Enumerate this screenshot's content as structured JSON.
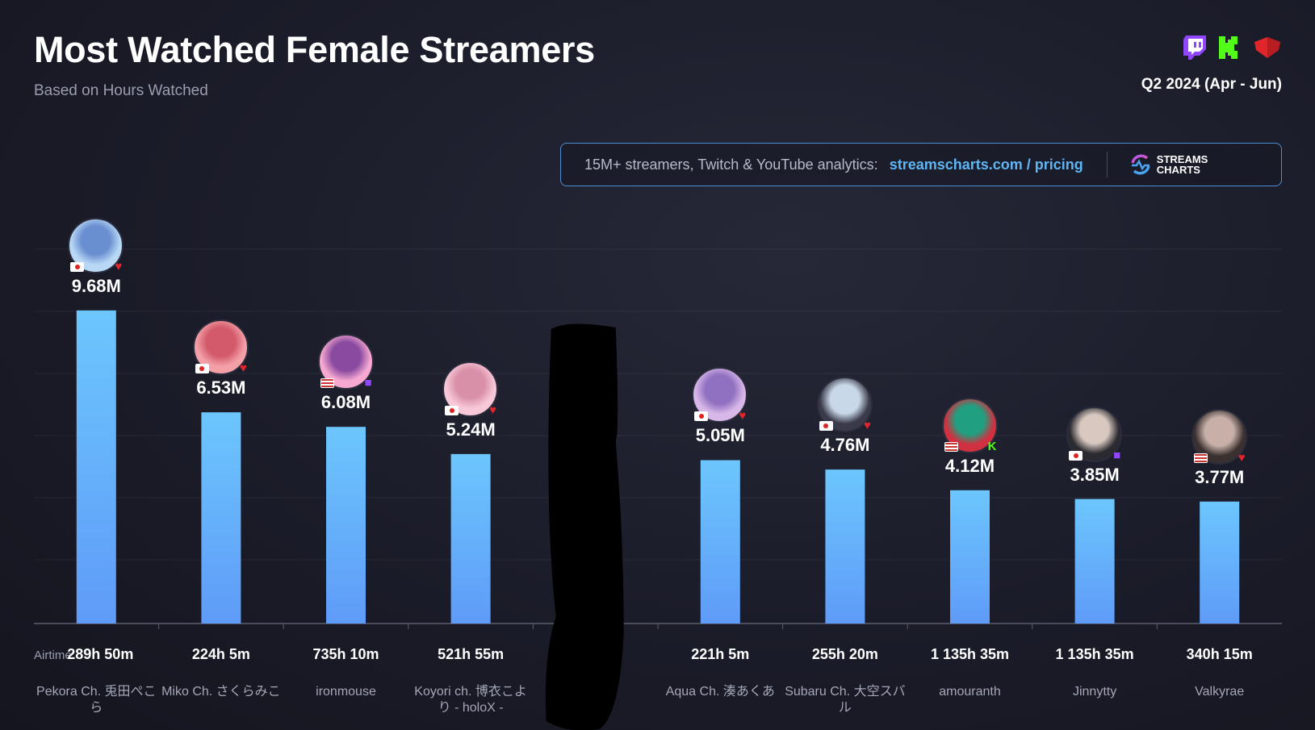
{
  "header": {
    "title": "Most Watched Female Streamers",
    "subtitle": "Based on Hours Watched",
    "period": "Q2 2024 (Apr - Jun)",
    "platform_icons": [
      "twitch-icon",
      "kick-icon",
      "youtube-icon"
    ]
  },
  "promo": {
    "text": "15M+ streamers, Twitch & YouTube analytics:",
    "link": "streamscharts.com / pricing",
    "logo_line1": "STREAMS",
    "logo_line2": "CHARTS"
  },
  "colors": {
    "bar_top": "#6cc6fd",
    "bar_bottom": "#5f9bf8",
    "twitch": "#9146ff",
    "kick": "#53fc18",
    "youtube": "#e0252b",
    "accent": "#5fb6f5"
  },
  "chart_data": {
    "type": "bar",
    "title": "Most Watched Female Streamers",
    "ylabel": "Hours Watched",
    "ylim": [
      0,
      10
    ],
    "airtime_label": "Airtime:",
    "categories": [
      "Pekora Ch. 兎田ぺこら",
      "Miko Ch. さくらみこ",
      "ironmouse",
      "Koyori ch. 博衣こより - holoX -",
      null,
      "Aqua Ch. 湊あくあ",
      "Subaru Ch. 大空スバル",
      "amouranth",
      "Jinnytty",
      "Valkyrae"
    ],
    "values": [
      9.68,
      6.53,
      6.08,
      5.24,
      null,
      5.05,
      4.76,
      4.12,
      3.85,
      3.77
    ],
    "value_labels": [
      "9.68M",
      "6.53M",
      "6.08M",
      "5.24M",
      null,
      "5.05M",
      "4.76M",
      "4.12M",
      "3.85M",
      "3.77M"
    ],
    "airtime": [
      "289h 50m",
      "224h 5m",
      "735h 10m",
      "521h 55m",
      null,
      "221h 5m",
      "255h 20m",
      "1 135h 35m",
      "1 135h 35m",
      "340h 15m"
    ],
    "countries": [
      "JP",
      "JP",
      "PR",
      "JP",
      null,
      "JP",
      "JP",
      "US",
      "KR",
      "US"
    ],
    "platforms": [
      "youtube",
      "youtube",
      "twitch",
      "youtube",
      null,
      "youtube",
      "youtube",
      "kick",
      "twitch",
      "youtube"
    ]
  }
}
